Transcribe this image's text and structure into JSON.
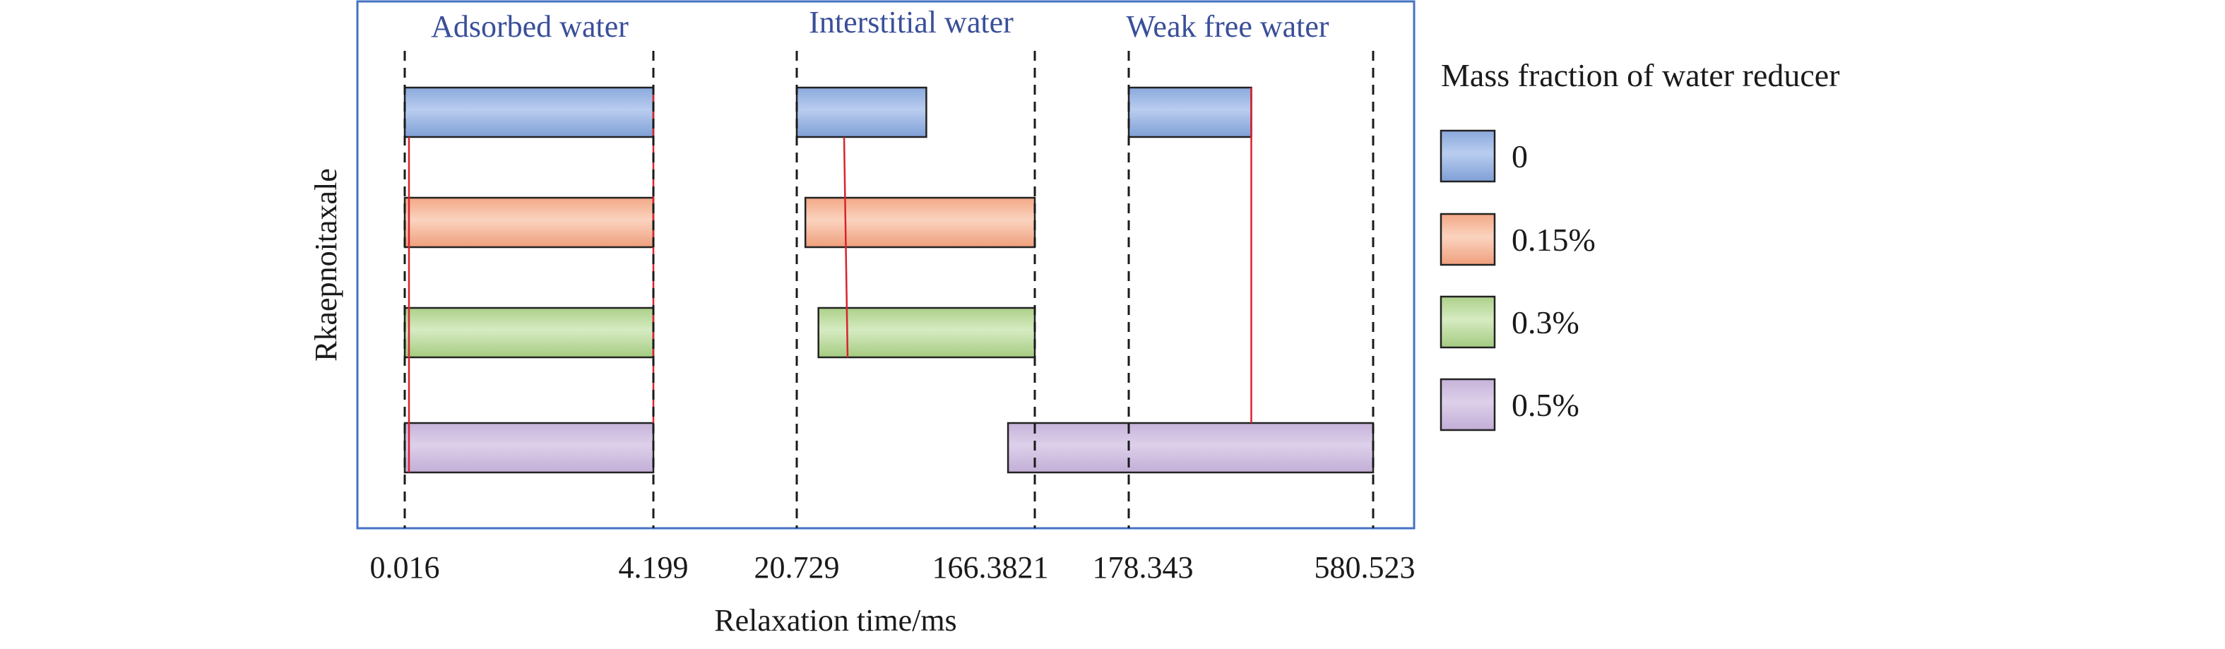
{
  "chart_data": {
    "type": "bar",
    "chart_kind": "horizontal-range-bar",
    "xlabel": "Relaxation time/ms",
    "ylabel": "Rkaepnoitaxale",
    "regions": [
      {
        "title": "Adsorbed water",
        "start": "0.016",
        "end": "4.199"
      },
      {
        "title": "Interstitial water",
        "start": "20.729",
        "end": "166.3821"
      },
      {
        "title": "Weak free water",
        "start": "178.343",
        "end": "580.523"
      }
    ],
    "x_ticks": [
      "0.016",
      "4.199",
      "20.729",
      "166.3821",
      "178.343",
      "580.523"
    ],
    "legend": {
      "title": "Mass fraction of water reducer",
      "placement": "right"
    },
    "series": [
      {
        "name": "0",
        "color": "#9ab6e4",
        "ranges": [
          [
            0.016,
            4.199
          ],
          [
            20.729,
            100.0
          ],
          [
            178.343,
            380.0
          ]
        ]
      },
      {
        "name": "0.15%",
        "color": "#f6b89a",
        "ranges": [
          [
            0.016,
            4.199
          ],
          [
            26.0,
            166.3821
          ]
        ]
      },
      {
        "name": "0.3%",
        "color": "#bcd99c",
        "ranges": [
          [
            0.016,
            4.199
          ],
          [
            34.0,
            166.3821
          ]
        ]
      },
      {
        "name": "0.5%",
        "color": "#cdbbdf",
        "ranges": [
          [
            0.016,
            4.199
          ],
          [
            150.0,
            580.523
          ]
        ]
      }
    ],
    "colors": {
      "frame": "#4472c4",
      "region_title": "#3a4f9a",
      "peak_line": "#d9232e"
    }
  }
}
